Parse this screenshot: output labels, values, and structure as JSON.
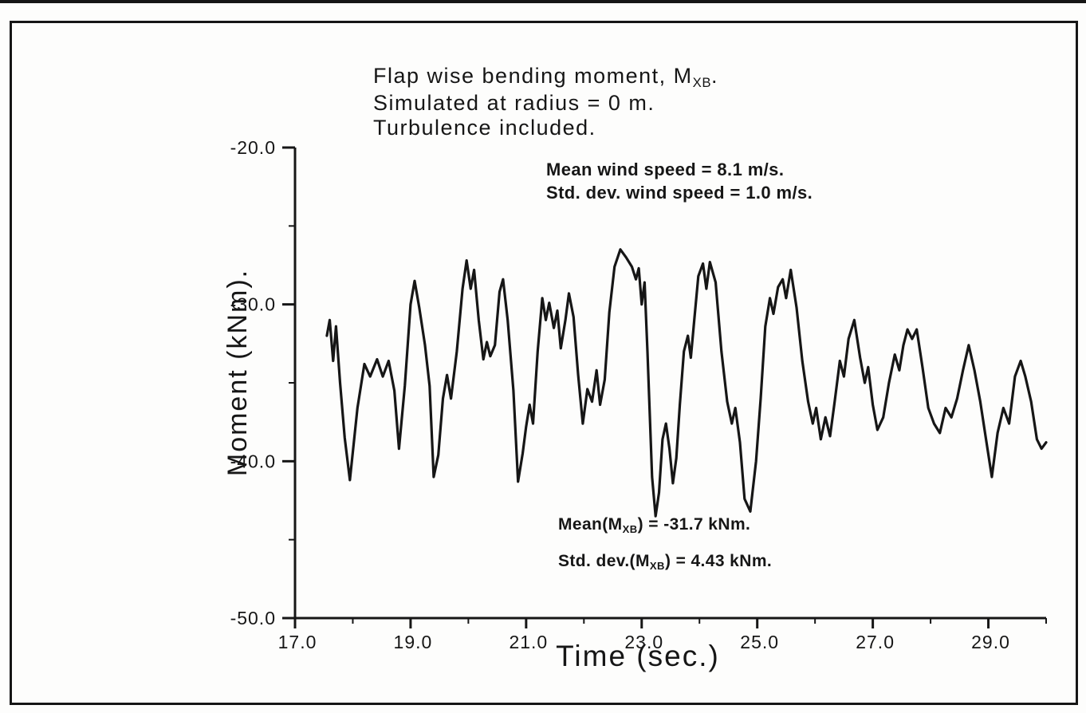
{
  "page": {
    "background": "#fdfdfc",
    "ink_color": "#161616"
  },
  "chart_data": {
    "type": "line",
    "title": {
      "line1_pre": "Flap wise bending moment, M",
      "line1_sub": "XB",
      "line1_post": ".",
      "line2": "Simulated at radius = 0 m.",
      "line3": "Turbulence included."
    },
    "xlabel": "Time (sec.)",
    "ylabel": "Moment (kNm).",
    "xlim": [
      17.0,
      30.0
    ],
    "ylim": [
      -50.0,
      -20.0
    ],
    "grid": false,
    "x_ticks": [
      {
        "v": 17.0,
        "label": "17.0"
      },
      {
        "v": 19.0,
        "label": "19.0"
      },
      {
        "v": 21.0,
        "label": "21.0"
      },
      {
        "v": 23.0,
        "label": "23.0"
      },
      {
        "v": 25.0,
        "label": "25.0"
      },
      {
        "v": 27.0,
        "label": "27.0"
      },
      {
        "v": 29.0,
        "label": "29.0"
      }
    ],
    "x_minor_ticks": [
      18.0,
      20.0,
      22.0,
      24.0,
      26.0,
      28.0,
      30.0
    ],
    "y_ticks": [
      {
        "v": -20.0,
        "label": "-20.0"
      },
      {
        "v": -30.0,
        "label": "-30.0"
      },
      {
        "v": -40.0,
        "label": "-40.0"
      },
      {
        "v": -50.0,
        "label": "-50.0"
      }
    ],
    "y_minor_ticks": [
      -25.0,
      -35.0,
      -45.0
    ],
    "annotations": {
      "wind": {
        "line1": "Mean wind speed = 8.1 m/s.",
        "line2": "Std. dev. wind speed = 1.0 m/s."
      },
      "mean": {
        "pre": "Mean(M",
        "sub": "XB",
        "post": ") = -31.7 kNm."
      },
      "std": {
        "pre": "Std. dev.(M",
        "sub": "XB",
        "post": ") = 4.43 kNm."
      }
    },
    "stats": {
      "mean_kNm": -31.7,
      "std_kNm": 4.43,
      "mean_wind_mps": 8.1,
      "std_wind_mps": 1.0
    },
    "line_color": "#161616",
    "series": [
      {
        "name": "flapwise_bending_moment_MXB",
        "points": [
          [
            17.55,
            -32.0
          ],
          [
            17.6,
            -31.0
          ],
          [
            17.66,
            -33.6
          ],
          [
            17.71,
            -31.4
          ],
          [
            17.78,
            -35.0
          ],
          [
            17.86,
            -38.5
          ],
          [
            17.95,
            -41.2
          ],
          [
            18.08,
            -36.6
          ],
          [
            18.2,
            -33.8
          ],
          [
            18.3,
            -34.6
          ],
          [
            18.42,
            -33.5
          ],
          [
            18.52,
            -34.6
          ],
          [
            18.62,
            -33.6
          ],
          [
            18.72,
            -35.5
          ],
          [
            18.8,
            -39.2
          ],
          [
            18.9,
            -35.2
          ],
          [
            19.0,
            -30.0
          ],
          [
            19.07,
            -28.5
          ],
          [
            19.15,
            -30.2
          ],
          [
            19.25,
            -32.6
          ],
          [
            19.33,
            -35.2
          ],
          [
            19.4,
            -41.0
          ],
          [
            19.48,
            -39.6
          ],
          [
            19.56,
            -36.0
          ],
          [
            19.63,
            -34.5
          ],
          [
            19.7,
            -36.0
          ],
          [
            19.8,
            -33.0
          ],
          [
            19.9,
            -29.0
          ],
          [
            19.97,
            -27.2
          ],
          [
            20.04,
            -29.0
          ],
          [
            20.1,
            -27.8
          ],
          [
            20.18,
            -31.0
          ],
          [
            20.26,
            -33.5
          ],
          [
            20.32,
            -32.4
          ],
          [
            20.38,
            -33.3
          ],
          [
            20.46,
            -32.6
          ],
          [
            20.54,
            -29.2
          ],
          [
            20.6,
            -28.4
          ],
          [
            20.68,
            -31.0
          ],
          [
            20.78,
            -35.5
          ],
          [
            20.86,
            -41.3
          ],
          [
            20.94,
            -39.5
          ],
          [
            21.0,
            -37.8
          ],
          [
            21.06,
            -36.4
          ],
          [
            21.12,
            -37.6
          ],
          [
            21.2,
            -33.0
          ],
          [
            21.28,
            -29.6
          ],
          [
            21.34,
            -31.0
          ],
          [
            21.4,
            -29.9
          ],
          [
            21.48,
            -31.5
          ],
          [
            21.54,
            -30.4
          ],
          [
            21.6,
            -32.8
          ],
          [
            21.68,
            -31.0
          ],
          [
            21.74,
            -29.3
          ],
          [
            21.82,
            -30.8
          ],
          [
            21.9,
            -34.5
          ],
          [
            21.98,
            -37.6
          ],
          [
            22.06,
            -35.4
          ],
          [
            22.14,
            -36.2
          ],
          [
            22.22,
            -34.2
          ],
          [
            22.28,
            -36.4
          ],
          [
            22.36,
            -34.8
          ],
          [
            22.44,
            -30.5
          ],
          [
            22.53,
            -27.6
          ],
          [
            22.63,
            -26.5
          ],
          [
            22.73,
            -27.0
          ],
          [
            22.83,
            -27.6
          ],
          [
            22.9,
            -28.4
          ],
          [
            22.95,
            -27.7
          ],
          [
            23.0,
            -30.0
          ],
          [
            23.05,
            -28.6
          ],
          [
            23.1,
            -33.0
          ],
          [
            23.18,
            -41.0
          ],
          [
            23.24,
            -43.5
          ],
          [
            23.3,
            -42.0
          ],
          [
            23.36,
            -38.6
          ],
          [
            23.42,
            -37.6
          ],
          [
            23.48,
            -39.2
          ],
          [
            23.54,
            -41.4
          ],
          [
            23.6,
            -39.8
          ],
          [
            23.66,
            -36.4
          ],
          [
            23.73,
            -33.0
          ],
          [
            23.8,
            -32.0
          ],
          [
            23.85,
            -33.4
          ],
          [
            23.91,
            -31.0
          ],
          [
            23.98,
            -28.2
          ],
          [
            24.06,
            -27.4
          ],
          [
            24.12,
            -29.0
          ],
          [
            24.18,
            -27.3
          ],
          [
            24.28,
            -28.6
          ],
          [
            24.38,
            -33.0
          ],
          [
            24.48,
            -36.2
          ],
          [
            24.56,
            -37.6
          ],
          [
            24.62,
            -36.6
          ],
          [
            24.7,
            -38.8
          ],
          [
            24.78,
            -42.4
          ],
          [
            24.88,
            -43.2
          ],
          [
            24.98,
            -40.0
          ],
          [
            25.06,
            -36.0
          ],
          [
            25.14,
            -31.4
          ],
          [
            25.22,
            -29.6
          ],
          [
            25.28,
            -30.6
          ],
          [
            25.36,
            -28.9
          ],
          [
            25.44,
            -28.4
          ],
          [
            25.5,
            -29.6
          ],
          [
            25.58,
            -27.8
          ],
          [
            25.68,
            -30.2
          ],
          [
            25.78,
            -33.6
          ],
          [
            25.88,
            -36.2
          ],
          [
            25.96,
            -37.6
          ],
          [
            26.02,
            -36.6
          ],
          [
            26.1,
            -38.6
          ],
          [
            26.18,
            -37.2
          ],
          [
            26.26,
            -38.4
          ],
          [
            26.34,
            -36.2
          ],
          [
            26.43,
            -33.6
          ],
          [
            26.5,
            -34.6
          ],
          [
            26.58,
            -32.2
          ],
          [
            26.68,
            -31.0
          ],
          [
            26.78,
            -33.4
          ],
          [
            26.86,
            -35.0
          ],
          [
            26.92,
            -34.0
          ],
          [
            27.0,
            -36.4
          ],
          [
            27.08,
            -38.0
          ],
          [
            27.18,
            -37.2
          ],
          [
            27.28,
            -35.0
          ],
          [
            27.38,
            -33.2
          ],
          [
            27.46,
            -34.2
          ],
          [
            27.53,
            -32.6
          ],
          [
            27.6,
            -31.6
          ],
          [
            27.68,
            -32.2
          ],
          [
            27.76,
            -31.6
          ],
          [
            27.86,
            -34.0
          ],
          [
            27.96,
            -36.6
          ],
          [
            28.06,
            -37.6
          ],
          [
            28.16,
            -38.2
          ],
          [
            28.26,
            -36.6
          ],
          [
            28.36,
            -37.2
          ],
          [
            28.46,
            -36.0
          ],
          [
            28.56,
            -34.2
          ],
          [
            28.66,
            -32.6
          ],
          [
            28.76,
            -34.2
          ],
          [
            28.86,
            -36.2
          ],
          [
            28.96,
            -38.6
          ],
          [
            29.06,
            -41.0
          ],
          [
            29.16,
            -38.2
          ],
          [
            29.26,
            -36.6
          ],
          [
            29.36,
            -37.6
          ],
          [
            29.46,
            -34.6
          ],
          [
            29.56,
            -33.6
          ],
          [
            29.64,
            -34.6
          ],
          [
            29.74,
            -36.2
          ],
          [
            29.84,
            -38.6
          ],
          [
            29.92,
            -39.2
          ],
          [
            30.0,
            -38.8
          ]
        ]
      }
    ]
  }
}
